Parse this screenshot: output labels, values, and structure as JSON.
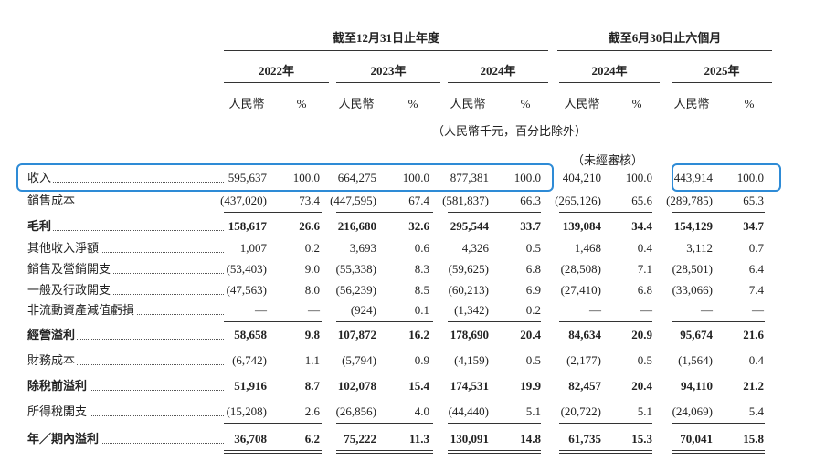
{
  "header": {
    "groups": [
      "截至12月31日止年度",
      "截至6月30日止六個月"
    ],
    "years": [
      "2022年",
      "2023年",
      "2024年",
      "2024年",
      "2025年"
    ],
    "column_labels": [
      "人民幣",
      "%",
      "人民幣",
      "%",
      "人民幣",
      "%",
      "人民幣",
      "%",
      "人民幣",
      "%"
    ],
    "unit_note": "（人民幣千元，百分比除外）",
    "unaudited": "（未經審核）"
  },
  "table": {
    "rows": [
      {
        "label": "收入",
        "values": [
          "595,637",
          "100.0",
          "664,275",
          "100.0",
          "877,381",
          "100.0",
          "404,210",
          "100.0",
          "443,914",
          "100.0"
        ]
      },
      {
        "label": "銷售成本",
        "values": [
          "(437,020)",
          "73.4",
          "(447,595)",
          "67.4",
          "(581,837)",
          "66.3",
          "(265,126)",
          "65.6",
          "(289,785)",
          "65.3"
        ]
      },
      {
        "label": "毛利",
        "values": [
          "158,617",
          "26.6",
          "216,680",
          "32.6",
          "295,544",
          "33.7",
          "139,084",
          "34.4",
          "154,129",
          "34.7"
        ]
      },
      {
        "label": "其他收入淨額",
        "values": [
          "1,007",
          "0.2",
          "3,693",
          "0.6",
          "4,326",
          "0.5",
          "1,468",
          "0.4",
          "3,112",
          "0.7"
        ]
      },
      {
        "label": "銷售及營銷開支",
        "values": [
          "(53,403)",
          "9.0",
          "(55,338)",
          "8.3",
          "(59,625)",
          "6.8",
          "(28,508)",
          "7.1",
          "(28,501)",
          "6.4"
        ]
      },
      {
        "label": "一般及行政開支",
        "values": [
          "(47,563)",
          "8.0",
          "(56,239)",
          "8.5",
          "(60,213)",
          "6.9",
          "(27,410)",
          "6.8",
          "(33,066)",
          "7.4"
        ]
      },
      {
        "label": "非流動資產減值虧損",
        "values": [
          "—",
          "—",
          "(924)",
          "0.1",
          "(1,342)",
          "0.2",
          "—",
          "—",
          "—",
          "—"
        ]
      },
      {
        "label": "經營溢利",
        "values": [
          "58,658",
          "9.8",
          "107,872",
          "16.2",
          "178,690",
          "20.4",
          "84,634",
          "20.9",
          "95,674",
          "21.6"
        ]
      },
      {
        "label": "財務成本",
        "values": [
          "(6,742)",
          "1.1",
          "(5,794)",
          "0.9",
          "(4,159)",
          "0.5",
          "(2,177)",
          "0.5",
          "(1,564)",
          "0.4"
        ]
      },
      {
        "label": "除稅前溢利",
        "values": [
          "51,916",
          "8.7",
          "102,078",
          "15.4",
          "174,531",
          "19.9",
          "82,457",
          "20.4",
          "94,110",
          "21.2"
        ]
      },
      {
        "label": "所得稅開支",
        "values": [
          "(15,208)",
          "2.6",
          "(26,856)",
          "4.0",
          "(44,440)",
          "5.1",
          "(20,722)",
          "5.1",
          "(24,069)",
          "5.4"
        ]
      },
      {
        "label": "年／期內溢利",
        "values": [
          "36,708",
          "6.2",
          "75,222",
          "11.3",
          "130,091",
          "14.8",
          "61,735",
          "15.3",
          "70,041",
          "15.8"
        ]
      }
    ]
  }
}
